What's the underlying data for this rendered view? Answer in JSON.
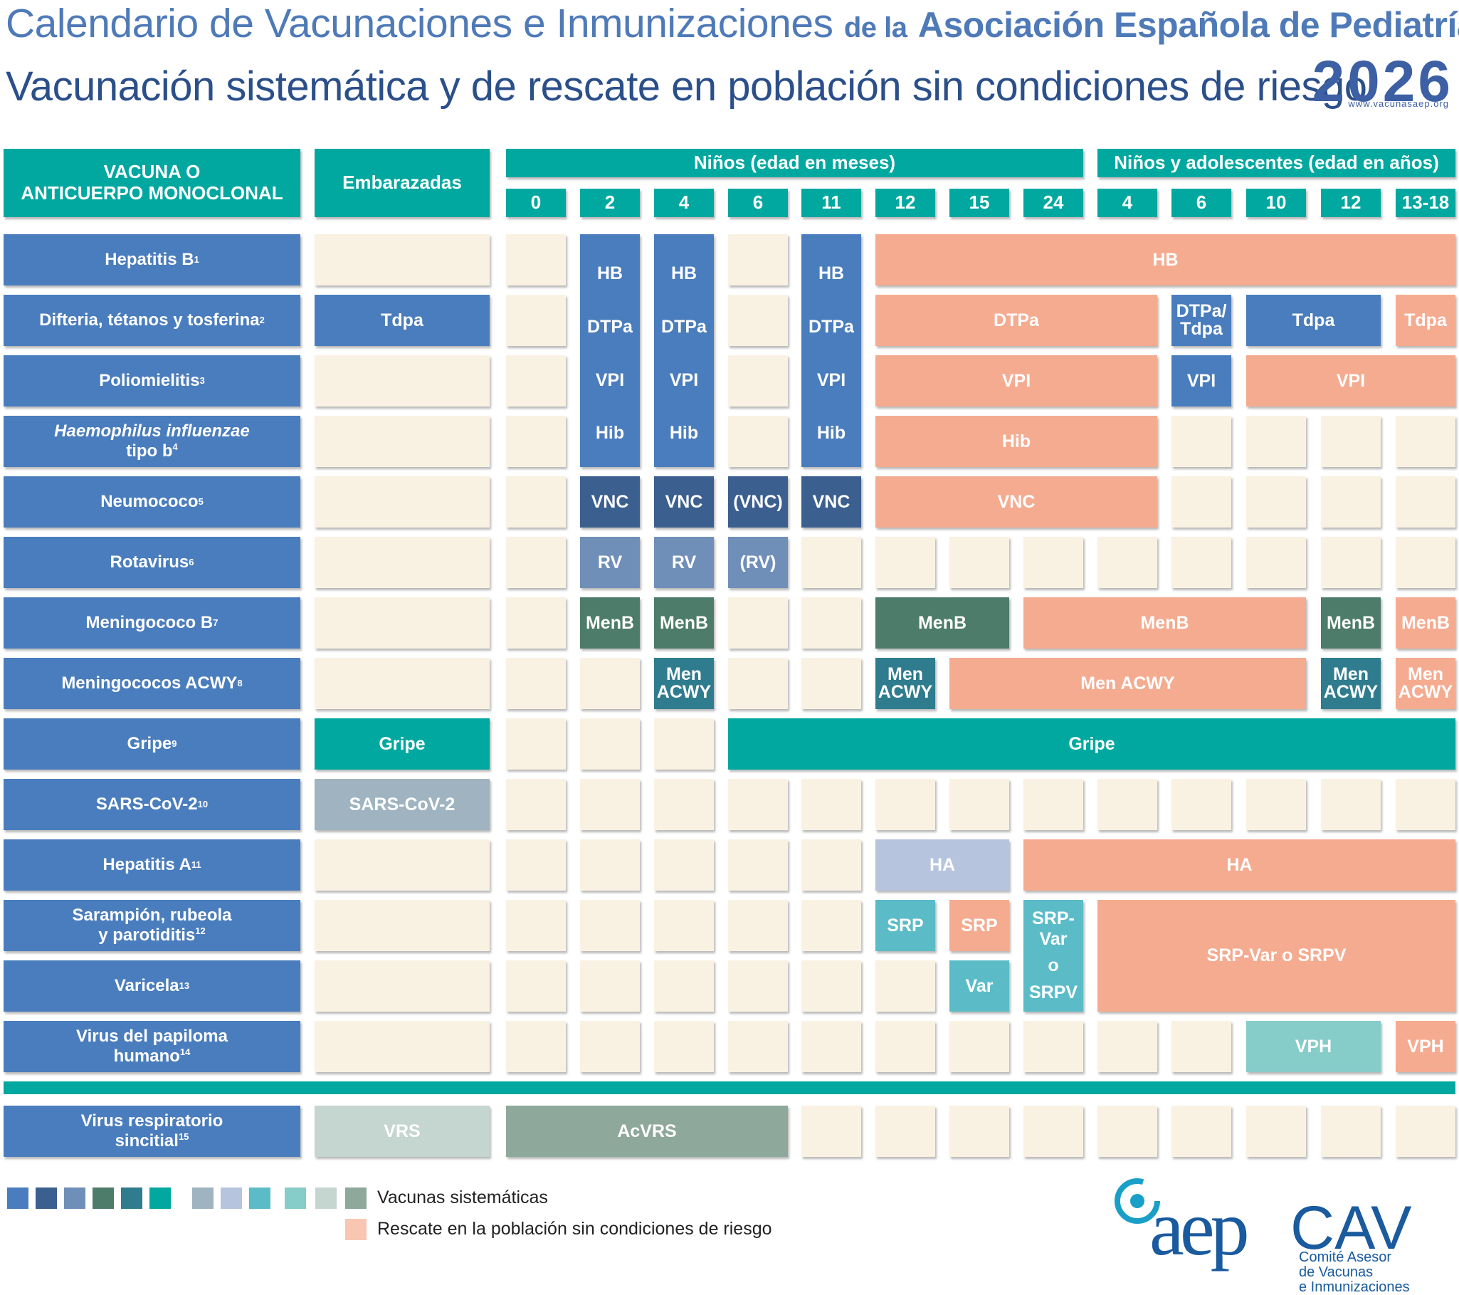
{
  "header": {
    "title_part1": "Calendario de Vacunaciones e Inmunizaciones",
    "title_part2": "de la",
    "title_part3": "Asociación Española de Pediatría",
    "subtitle": "Vacunación sistemática y de rescate en población sin condiciones de riesgo",
    "year": "2026",
    "url": "www.vacunasaep.org"
  },
  "table_header": {
    "vaccine_col_line1": "VACUNA O",
    "vaccine_col_line2": "ANTICUERPO MONOCLONAL",
    "pregnant_col": "Embarazadas",
    "children_months": "Niños (edad en meses)",
    "children_years": "Niños y adolescentes (edad en años)",
    "ages": [
      "0",
      "2",
      "4",
      "6",
      "11",
      "12",
      "15",
      "24",
      "4",
      "6",
      "10",
      "12",
      "13-18"
    ]
  },
  "rows": [
    {
      "label": "Hepatitis B",
      "sup": "1"
    },
    {
      "label": "Difteria, tétanos y tosferina",
      "sup": "2"
    },
    {
      "label": "Poliomielitis",
      "sup": "3"
    },
    {
      "label_line1": "Haemophilus influenzae",
      "label_line2": "tipo b",
      "sup": "4"
    },
    {
      "label": "Neumococo",
      "sup": "5"
    },
    {
      "label": "Rotavirus",
      "sup": "6"
    },
    {
      "label": "Meningococo B",
      "sup": "7"
    },
    {
      "label": "Meningococos ACWY",
      "sup": "8"
    },
    {
      "label": "Gripe",
      "sup": "9"
    },
    {
      "label": "SARS-CoV-2",
      "sup": "10"
    },
    {
      "label": "Hepatitis A",
      "sup": "11"
    },
    {
      "label_line1": "Sarampión, rubeola",
      "label_line2": "y parotiditis",
      "sup": "12"
    },
    {
      "label": "Varicela",
      "sup": "13"
    },
    {
      "label_line1": "Virus del papiloma",
      "label_line2": "humano",
      "sup": "14"
    },
    {
      "label_line1": "Virus respiratorio",
      "label_line2": "sincitial",
      "sup": "15"
    }
  ],
  "cells": {
    "hb": "HB",
    "dtpa": "DTPa",
    "dtpa_tdpa_1": "DTPa/",
    "dtpa_tdpa_2": "Tdpa",
    "tdpa": "Tdpa",
    "vpi": "VPI",
    "hib": "Hib",
    "vnc": "VNC",
    "vnc_paren": "(VNC)",
    "rv": "RV",
    "rv_paren": "(RV)",
    "menb": "MenB",
    "men": "Men",
    "acwy": "ACWY",
    "men_acwy": "Men ACWY",
    "gripe": "Gripe",
    "sars": "SARS-CoV-2",
    "ha": "HA",
    "srp": "SRP",
    "var": "Var",
    "srpvar_1": "SRP-Var",
    "srpvar_2": "o",
    "srpvar_3": "SRPV",
    "srpvar_srpv": "SRP-Var o SRPV",
    "vph": "VPH",
    "vrs": "VRS",
    "acvrs": "AcVRS"
  },
  "legend": {
    "systematic": "Vacunas sistemáticas",
    "rescue": "Rescate en la población sin condiciones de riesgo",
    "swatch_colors": [
      "#4a7dbd",
      "#3b5f8f",
      "#6f8fb8",
      "#4d7d6a",
      "#2f7c8e",
      "#00a8a0",
      "#9fb4c0",
      "#b7c4de",
      "#5bbcc8",
      "#86ccc8",
      "#c5d5cf",
      "#8ea89c"
    ],
    "rescue_color": "#f5ab90"
  },
  "logo": {
    "aep": "aep",
    "cav": "CAV",
    "line1": "Comité Asesor",
    "line2": "de Vacunas",
    "line3": "e Inmunizaciones"
  }
}
